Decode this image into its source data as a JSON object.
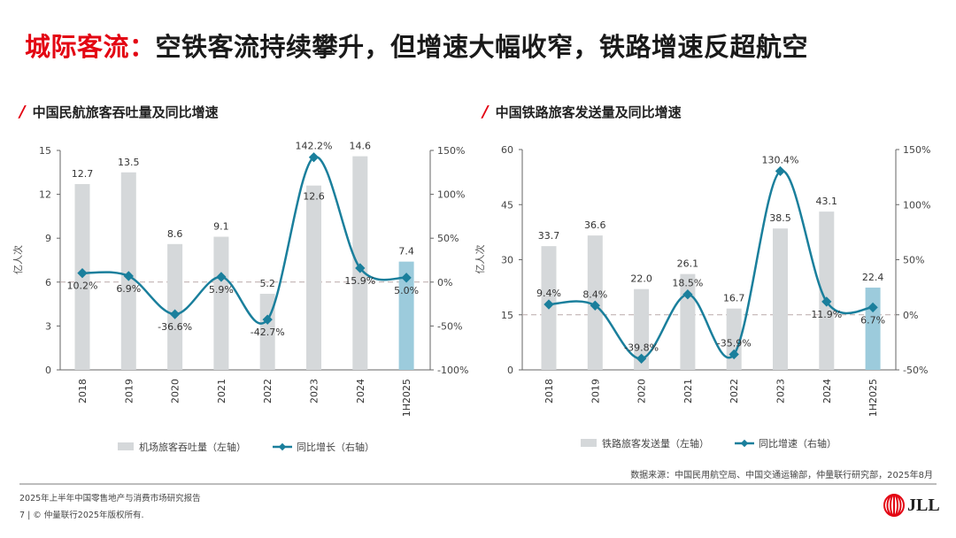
{
  "title": {
    "accent": "城际客流：",
    "rest": "空铁客流持续攀升，但增速大幅收窄，铁路增速反超航空"
  },
  "colors": {
    "accent": "#e30613",
    "bar": "#d5d8da",
    "bar_highlight": "#9ccbdc",
    "line": "#1a7f9c",
    "zero_line": "#b9a9a9"
  },
  "chart_data": [
    {
      "type": "bar+line",
      "title": "中国民航旅客吞吐量及同比增速",
      "ylabel": "亿人次",
      "categories": [
        "2018",
        "2019",
        "2020",
        "2021",
        "2022",
        "2023",
        "2024",
        "1H2025"
      ],
      "series": [
        {
          "name": "机场旅客吞吐量（左轴）",
          "type": "bar",
          "axis": "left",
          "values": [
            12.7,
            13.5,
            8.6,
            9.1,
            5.2,
            12.6,
            14.6,
            7.4
          ],
          "labels": [
            "12.7",
            "13.5",
            "8.6",
            "9.1",
            "5.2",
            "12.6",
            "14.6",
            "7.4"
          ]
        },
        {
          "name": "同比增长（右轴）",
          "type": "line",
          "axis": "right",
          "values": [
            10.2,
            6.9,
            -36.6,
            5.9,
            -42.7,
            142.2,
            15.9,
            5.0
          ],
          "labels": [
            "10.2%",
            "6.9%",
            "-36.6%",
            "5.9%",
            "-42.7%",
            "142.2%",
            "15.9%",
            "5.0%"
          ]
        }
      ],
      "left_axis": {
        "range": [
          0,
          15
        ],
        "ticks": [
          "0",
          "3",
          "6",
          "9",
          "12",
          "15"
        ]
      },
      "right_axis": {
        "range": [
          -100,
          150
        ],
        "ticks": [
          "-100%",
          "-50%",
          "0%",
          "50%",
          "100%",
          "150%"
        ]
      },
      "highlight_category": "1H2025",
      "grid": false,
      "legend_placement": "bottom"
    },
    {
      "type": "bar+line",
      "title": "中国铁路旅客发送量及同比增速",
      "ylabel": "亿人次",
      "categories": [
        "2018",
        "2019",
        "2020",
        "2021",
        "2022",
        "2023",
        "2024",
        "1H2025"
      ],
      "series": [
        {
          "name": "铁路旅客发送量（左轴）",
          "type": "bar",
          "axis": "left",
          "values": [
            33.7,
            36.6,
            22.0,
            26.1,
            16.7,
            38.5,
            43.1,
            22.4
          ],
          "labels": [
            "33.7",
            "36.6",
            "22.0",
            "26.1",
            "16.7",
            "38.5",
            "43.1",
            "22.4"
          ]
        },
        {
          "name": "同比增速（右轴）",
          "type": "line",
          "axis": "right",
          "values": [
            9.4,
            8.4,
            -39.8,
            18.5,
            -35.9,
            130.4,
            11.9,
            6.7
          ],
          "labels": [
            "9.4%",
            "8.4%",
            "-39.8%",
            "18.5%",
            "-35.9%",
            "130.4%",
            "11.9%",
            "6.7%"
          ]
        }
      ],
      "left_axis": {
        "range": [
          0,
          60
        ],
        "ticks": [
          "0",
          "15",
          "30",
          "45",
          "60"
        ]
      },
      "right_axis": {
        "range": [
          -50,
          150
        ],
        "ticks": [
          "-50%",
          "0%",
          "50%",
          "100%",
          "150%"
        ]
      },
      "highlight_category": "1H2025",
      "grid": false,
      "legend_placement": "bottom"
    }
  ],
  "source": "数据来源：中国民用航空局、中国交通运输部，仲量联行研究部，2025年8月",
  "footer": {
    "report": "2025年上半年中国零售地产与消费市场研究报告",
    "copyright": "7 | © 仲量联行2025年版权所有.",
    "logo": "JLL"
  }
}
